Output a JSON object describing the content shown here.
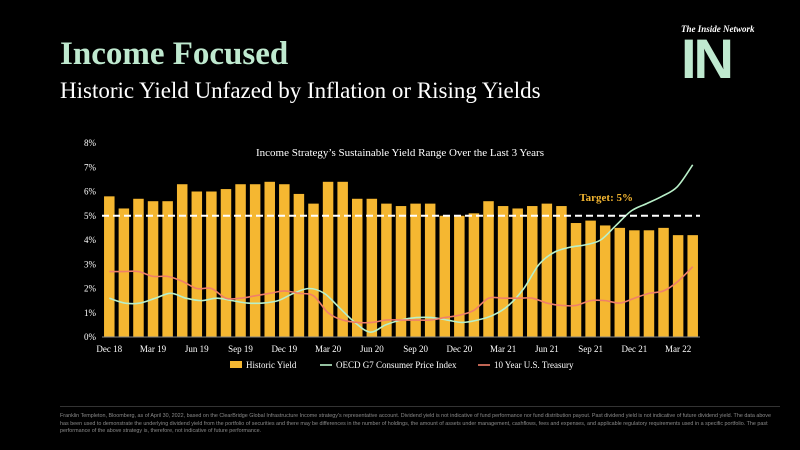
{
  "header": {
    "title": "Income Focused",
    "subtitle": "Historic Yield Unfazed by Inflation or Rising Yields"
  },
  "brand": {
    "small": "The Inside Network",
    "logo": "IN"
  },
  "colors": {
    "bar": "#f5b731",
    "cpi": "#b9f0c9",
    "treasury": "#f07f6a",
    "target": "#ffffff",
    "target_label": "#f5b731",
    "title": "#bfe9cf"
  },
  "chart_data": {
    "type": "bar",
    "title": "Income Strategy’s Sustainable Yield Range Over the Last 3 Years",
    "ylim": [
      0,
      8
    ],
    "yticks": [
      "0%",
      "1%",
      "2%",
      "3%",
      "4%",
      "5%",
      "6%",
      "7%",
      "8%"
    ],
    "xtick_labels": [
      "Dec 18",
      "Mar 19",
      "Jun 19",
      "Sep 19",
      "Dec 19",
      "Mar 20",
      "Jun 20",
      "Sep 20",
      "Dec 20",
      "Mar 21",
      "Jun 21",
      "Sep 21",
      "Dec 21",
      "Mar 22"
    ],
    "target": {
      "value": 5.0,
      "label": "Target: 5%"
    },
    "series": [
      {
        "name": "Historic Yield",
        "kind": "bar",
        "values": [
          5.8,
          5.3,
          5.7,
          5.6,
          5.6,
          6.3,
          6.0,
          6.0,
          6.1,
          6.3,
          6.3,
          6.4,
          6.3,
          5.9,
          5.5,
          6.4,
          6.4,
          5.7,
          5.7,
          5.5,
          5.4,
          5.5,
          5.5,
          5.0,
          5.0,
          5.1,
          5.6,
          5.4,
          5.3,
          5.4,
          5.5,
          5.4,
          4.7,
          4.8,
          4.6,
          4.5,
          4.4,
          4.4,
          4.5,
          4.2,
          4.2
        ]
      },
      {
        "name": "OECD G7 Consumer Price Index",
        "kind": "line",
        "values": [
          1.6,
          1.4,
          1.4,
          1.6,
          1.8,
          1.6,
          1.5,
          1.6,
          1.5,
          1.4,
          1.4,
          1.5,
          1.8,
          2.0,
          1.8,
          1.2,
          0.6,
          0.2,
          0.5,
          0.7,
          0.8,
          0.8,
          0.7,
          0.6,
          0.7,
          0.9,
          1.3,
          2.0,
          3.0,
          3.5,
          3.7,
          3.8,
          4.0,
          4.6,
          5.2,
          5.5,
          5.8,
          6.2,
          7.1
        ]
      },
      {
        "name": "10 Year U.S. Treasury",
        "kind": "line",
        "values": [
          2.7,
          2.7,
          2.7,
          2.5,
          2.5,
          2.3,
          2.0,
          2.0,
          1.6,
          1.6,
          1.7,
          1.8,
          1.9,
          1.8,
          1.7,
          1.0,
          0.7,
          0.6,
          0.6,
          0.7,
          0.7,
          0.7,
          0.7,
          0.8,
          0.9,
          1.1,
          1.6,
          1.6,
          1.6,
          1.6,
          1.4,
          1.3,
          1.3,
          1.5,
          1.5,
          1.4,
          1.6,
          1.8,
          1.9,
          2.3,
          2.9
        ]
      }
    ]
  },
  "footnote": "Franklin Templeton, Bloomberg, as of April 30, 2022, based on the ClearBridge Global Infrastructure Income strategy's representative account. Dividend yield is not indicative of fund performance nor fund distribution payout. Past dividend yield is not indicative of future dividend yield. The data above has been used to demonstrate the underlying dividend yield from the portfolio of securities and there may be differences in the number of holdings, the amount of assets under management, cashflows, fees and expenses, and applicable regulatory requirements used in a specific portfolio. The past performance of the above strategy is, therefore, not indicative of future performance."
}
